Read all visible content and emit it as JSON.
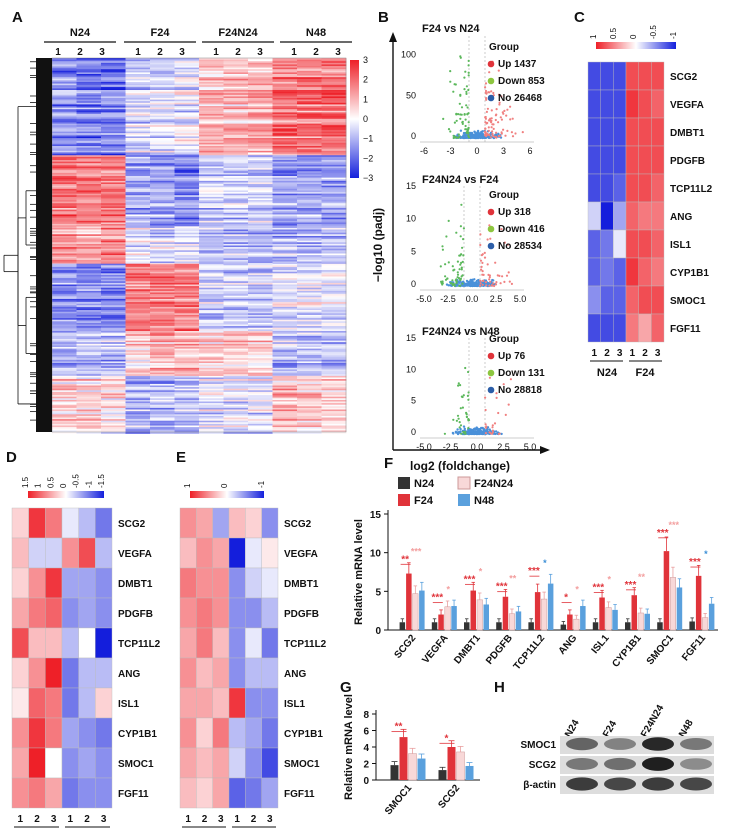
{
  "panel_labels": [
    "A",
    "B",
    "C",
    "D",
    "E",
    "F",
    "G",
    "H"
  ],
  "panelA": {
    "groups": [
      "N24",
      "F24",
      "F24N24",
      "N48"
    ],
    "replicates": [
      "1",
      "2",
      "3"
    ],
    "colorbar_ticks": [
      "3",
      "2",
      "1",
      "0",
      "−1",
      "−2",
      "−3"
    ]
  },
  "panelB": {
    "ylabel": "−log10 (padj)",
    "xlabel": "log2 (foldchange)",
    "legend_title": "Group",
    "plots": [
      {
        "title": "F24 vs N24",
        "up": "Up 1437",
        "down": "Down 853",
        "no": "No 26468",
        "yticks": [
          "150",
          "100",
          "50",
          "0"
        ],
        "xticks": [
          "-6",
          "-3",
          "0",
          "3",
          "6"
        ]
      },
      {
        "title": "F24N24 vs F24",
        "up": "Up 318",
        "down": "Down 416",
        "no": "No 28534",
        "yticks": [
          "15",
          "10",
          "5",
          "0"
        ],
        "xticks": [
          "-5.0",
          "-2.5",
          "0.0",
          "2.5",
          "5.0"
        ]
      },
      {
        "title": "F24N24 vs N48",
        "up": "Up 76",
        "down": "Down 131",
        "no": "No 28818",
        "yticks": [
          "15",
          "10",
          "5",
          "0"
        ],
        "xticks": [
          "-5.0",
          "-2.5",
          "0.0",
          "2.5",
          "5.0"
        ]
      }
    ]
  },
  "genes": [
    "SCG2",
    "VEGFA",
    "DMBT1",
    "PDGFB",
    "TCP11L2",
    "ANG",
    "ISL1",
    "CYP1B1",
    "SMOC1",
    "FGF11"
  ],
  "panelC": {
    "groups": [
      "N24",
      "F24"
    ],
    "scale": [
      "1",
      "0.5",
      "0",
      "-0.5",
      "-1"
    ]
  },
  "panelD": {
    "groups": [
      "F24",
      "F24N24"
    ],
    "scale": [
      "1.5",
      "1",
      "0.5",
      "0",
      "-0.5",
      "-1",
      "-1.5"
    ]
  },
  "panelE": {
    "groups": [
      "F24N24",
      "N48"
    ],
    "scale": [
      "1",
      "0",
      "-1"
    ]
  },
  "chart_data": [
    {
      "type": "bar",
      "title": "F",
      "ylabel": "Relative mRNA level",
      "ylim": [
        0,
        15
      ],
      "yticks": [
        "0",
        "5",
        "10",
        "15"
      ],
      "categories": [
        "SCG2",
        "VEGFA",
        "DMBT1",
        "PDGFB",
        "TCP11L2",
        "ANG",
        "ISL1",
        "CYP1B1",
        "SMOC1",
        "FGF11"
      ],
      "series": [
        {
          "name": "N24",
          "values": [
            1.0,
            1.0,
            1.0,
            1.0,
            1.0,
            0.7,
            1.0,
            1.0,
            1.0,
            1.1
          ]
        },
        {
          "name": "F24",
          "values": [
            7.3,
            2.0,
            5.1,
            4.3,
            4.9,
            2.0,
            4.2,
            4.5,
            10.2,
            7.0
          ]
        },
        {
          "name": "F24N24",
          "values": [
            4.7,
            3.0,
            3.9,
            2.1,
            4.0,
            1.4,
            2.9,
            2.2,
            6.8,
            1.6
          ]
        },
        {
          "name": "N48",
          "values": [
            5.1,
            3.1,
            3.3,
            2.4,
            6.0,
            3.1,
            2.6,
            2.1,
            5.5,
            3.4
          ]
        }
      ],
      "legend": [
        "N24",
        "F24",
        "F24N24",
        "N48"
      ]
    },
    {
      "type": "bar",
      "title": "G",
      "ylabel": "Relative mRNA level",
      "ylim": [
        0,
        8
      ],
      "yticks": [
        "0",
        "2",
        "4",
        "6",
        "8"
      ],
      "categories": [
        "SMOC1",
        "SCG2"
      ],
      "series": [
        {
          "name": "N24",
          "values": [
            1.8,
            1.2
          ]
        },
        {
          "name": "F24",
          "values": [
            5.2,
            4.0
          ]
        },
        {
          "name": "F24N24",
          "values": [
            3.2,
            3.4
          ]
        },
        {
          "name": "N48",
          "values": [
            2.6,
            1.7
          ]
        }
      ]
    }
  ],
  "panelH": {
    "lanes": [
      "N24",
      "F24",
      "F24N24",
      "N48"
    ],
    "rows": [
      "SMOC1",
      "SCG2",
      "β-actin"
    ]
  },
  "colors": {
    "N24": "#333333",
    "F24": "#e0333a",
    "F24N24": "#f8d8d8",
    "N48": "#5aa0dd",
    "up": "#f08080",
    "down": "#5cb85c",
    "no": "#4a90d9"
  }
}
